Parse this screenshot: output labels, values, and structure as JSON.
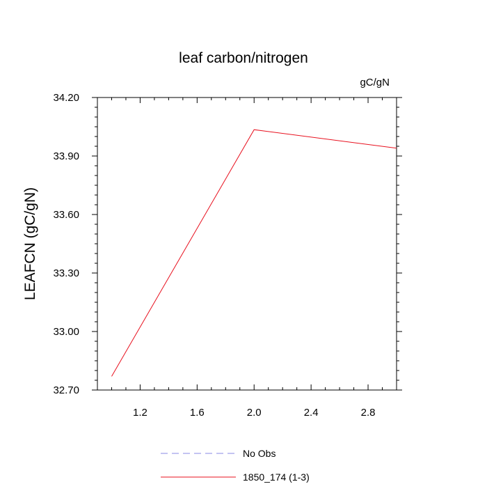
{
  "chart_data": {
    "type": "line",
    "title": "leaf carbon/nitrogen",
    "units": "gC/gN",
    "xlabel": "",
    "ylabel": "LEAFCN  (gC/gN)",
    "xlim": [
      0.9,
      3.0
    ],
    "ylim": [
      32.7,
      34.2
    ],
    "xticks": [
      1.2,
      1.6,
      2.0,
      2.4,
      2.8
    ],
    "xtick_labels": [
      "1.2",
      "1.6",
      "2.0",
      "2.4",
      "2.8"
    ],
    "yticks": [
      32.7,
      33.0,
      33.3,
      33.6,
      33.9,
      34.2
    ],
    "ytick_labels": [
      "32.70",
      "33.00",
      "33.30",
      "33.60",
      "33.90",
      "34.20"
    ],
    "series": [
      {
        "name": "No Obs",
        "color": "#8a8ae6",
        "dash": true,
        "x": [],
        "y": []
      },
      {
        "name": "1850_174 (1-3)",
        "color": "#e8101e",
        "dash": false,
        "x": [
          1.0,
          2.0,
          3.0
        ],
        "y": [
          32.77,
          34.035,
          33.94
        ]
      }
    ],
    "legend": "bottom-center",
    "grid": false
  }
}
